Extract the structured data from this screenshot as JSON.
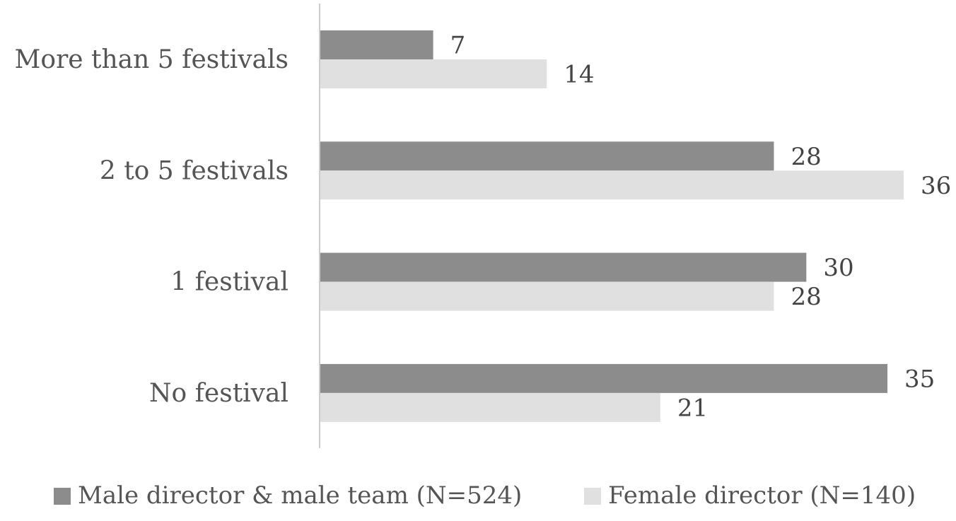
{
  "chart_data": {
    "type": "bar",
    "orientation": "horizontal",
    "categories": [
      "More than 5 festivals",
      "2 to 5 festivals",
      "1 festival",
      "No festival"
    ],
    "series": [
      {
        "name": "Male director & male team (N=524)",
        "color": "#8c8c8c",
        "values": [
          7,
          28,
          30,
          35
        ]
      },
      {
        "name": "Female director (N=140)",
        "color": "#e0e0e0",
        "values": [
          14,
          36,
          28,
          21
        ]
      }
    ],
    "xlim": [
      0,
      36
    ],
    "grid": false,
    "data_labels": true,
    "legend": "bottom"
  }
}
